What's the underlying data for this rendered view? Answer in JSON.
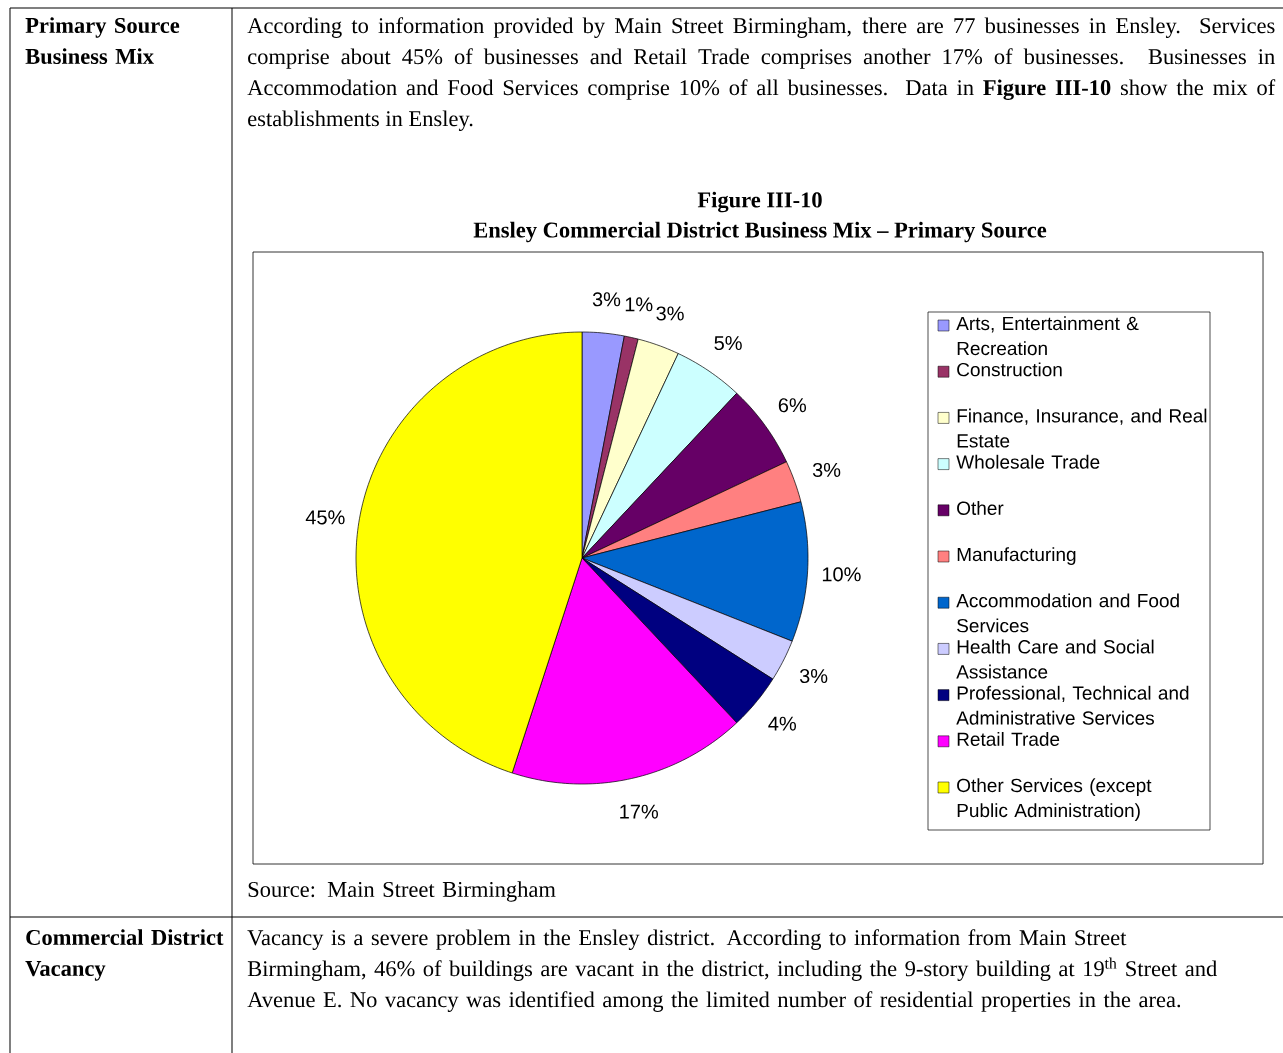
{
  "chart_data": {
    "type": "pie",
    "title": "Figure III-10",
    "subtitle": "Ensley Commercial District Business Mix – Primary Source",
    "categories": [
      "Arts, Entertainment & Recreation",
      "Construction",
      "Finance, Insurance, and Real Estate",
      "Wholesale Trade",
      "Other",
      "Manufacturing",
      "Accommodation and Food Services",
      "Health Care and Social Assistance",
      "Professional, Technical and Administrative Services",
      "Retail Trade",
      "Other Services (except Public Administration)"
    ],
    "values": [
      3,
      1,
      3,
      5,
      6,
      3,
      10,
      3,
      4,
      17,
      45
    ],
    "colors": [
      "#9999ff",
      "#993366",
      "#ffffcc",
      "#ccffff",
      "#660066",
      "#ff8080",
      "#0066cc",
      "#ccccff",
      "#000080",
      "#ff00ff",
      "#ffff00"
    ],
    "value_labels": [
      "3%",
      "1%",
      "3%",
      "5%",
      "6%",
      "3%",
      "10%",
      "3%",
      "4%",
      "17%",
      "45%"
    ],
    "legend": "right",
    "annotations": [
      "**Primary Source Business Mix**",
      "According to information provided by Main Street Birmingham, there are 77 businesses in Ensley. Services comprise about 45% of businesses and Retail Trade comprises another 17% of businesses. Businesses in Accommodation and Food Services comprise 10% of all businesses.  Data in **Figure III-10** show the mix of establishments in Ensley.",
      "Source: Main Street Birmingham",
      "**Commercial District Vacancy**",
      "Vacancy is a severe problem in the Ensley district.  According to information from Main Street Birmingham, 46% of buildings are vacant in the district, including the 9-story building at 19$^{th}$ Street and Avenue E.  No vacancy was identified among the limited number of residential properties in the area."
    ]
  }
}
